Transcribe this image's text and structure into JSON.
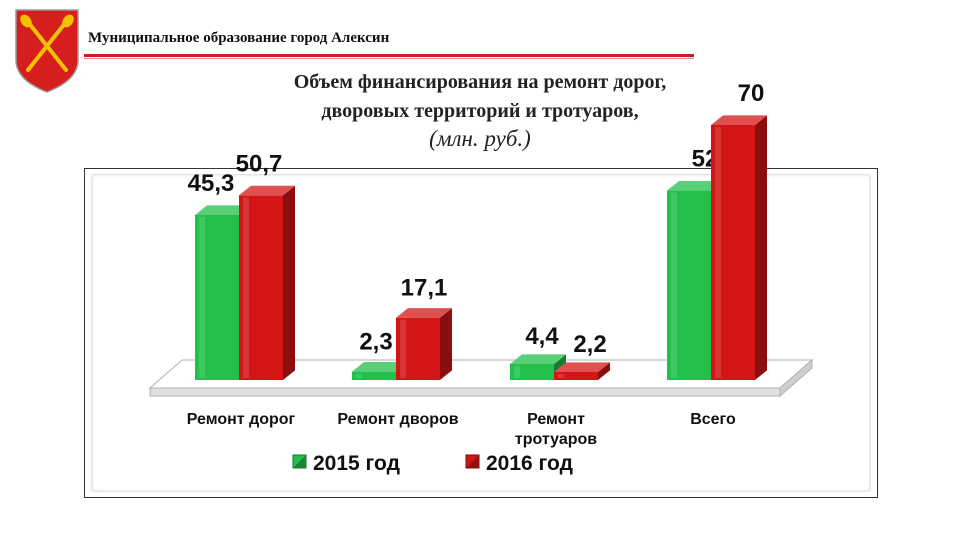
{
  "header": {
    "org": "Муниципальное образование город Алексин"
  },
  "title": {
    "line1": "Объем финансирования на ремонт дорог,",
    "line2": "дворовых территорий и тротуаров,",
    "unit": "(млн. руб.)"
  },
  "colors": {
    "series_2015": "#22c04a",
    "series_2016": "#d41515",
    "accent": "#d21a1a"
  },
  "chart_data": {
    "type": "bar",
    "categories": [
      "Ремонт дорог",
      "Ремонт дворов",
      "Ремонт тротуаров",
      "Всего"
    ],
    "category_labels": [
      [
        "Ремонт дорог"
      ],
      [
        "Ремонт дворов"
      ],
      [
        "Ремонт",
        "тротуаров"
      ],
      [
        "Всего"
      ]
    ],
    "series": [
      {
        "name": "2015 год",
        "values": [
          45.3,
          2.3,
          4.4,
          52
        ],
        "labels": [
          "45,3",
          "2,3",
          "4,4",
          "52"
        ]
      },
      {
        "name": "2016 год",
        "values": [
          50.7,
          17.1,
          2.2,
          70
        ],
        "labels": [
          "50,7",
          "17,1",
          "2,2",
          "70"
        ]
      }
    ],
    "ylim": [
      0,
      70
    ],
    "grid": false,
    "legend": "bottom",
    "style": "3d-bars"
  }
}
